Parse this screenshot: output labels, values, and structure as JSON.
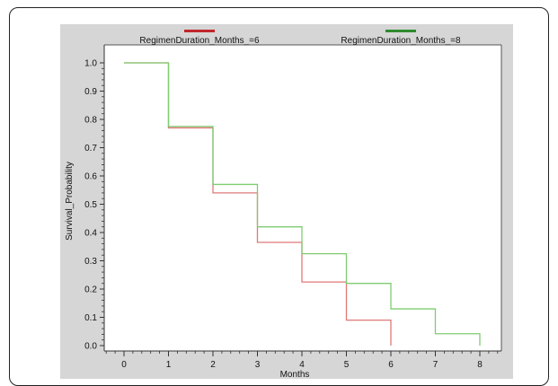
{
  "chart_data": {
    "type": "line",
    "step": true,
    "title": "",
    "xlabel": "Months",
    "ylabel": "Survival_Probability",
    "xlim": [
      -0.5,
      8.5
    ],
    "ylim": [
      0,
      1.05
    ],
    "xticks": [
      "0",
      "1",
      "2",
      "3",
      "4",
      "5",
      "6",
      "7",
      "8"
    ],
    "yticks": [
      "0.0",
      "0.1",
      "0.2",
      "0.3",
      "0.4",
      "0.5",
      "0.6",
      "0.7",
      "0.8",
      "0.9",
      "1.0"
    ],
    "grid": false,
    "legend_position": "top",
    "series": [
      {
        "name": "RegimenDuration_Months_=6",
        "color": "#e07878",
        "legend_color": "#c0262b",
        "x": [
          0,
          1,
          2,
          3,
          4,
          5,
          6
        ],
        "y": [
          1.0,
          0.77,
          0.54,
          0.365,
          0.225,
          0.09,
          0.0
        ]
      },
      {
        "name": "RegimenDuration_Months_=8",
        "color": "#7fcc70",
        "legend_color": "#2e8b2e",
        "x": [
          0,
          1,
          2,
          3,
          4,
          5,
          6,
          7,
          8
        ],
        "y": [
          1.0,
          0.775,
          0.57,
          0.42,
          0.325,
          0.22,
          0.13,
          0.042,
          0.0
        ]
      }
    ]
  }
}
